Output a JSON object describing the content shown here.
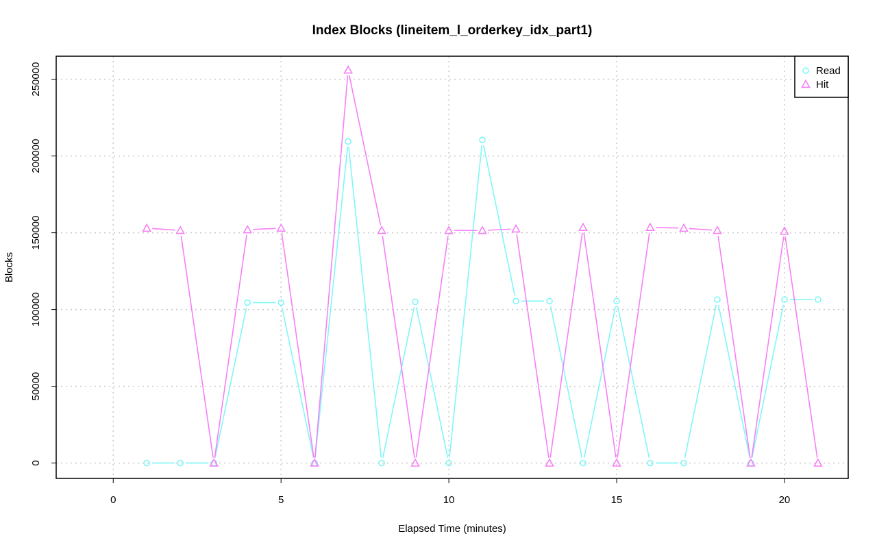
{
  "chart_data": {
    "type": "line",
    "title": "Index Blocks (lineitem_l_orderkey_idx_part1)",
    "xlabel": "Elapsed Time (minutes)",
    "ylabel": "Blocks",
    "xlim": [
      -1.7,
      21.9
    ],
    "ylim": [
      -10000,
      265000
    ],
    "x_ticks": [
      0,
      5,
      10,
      15,
      20
    ],
    "y_ticks": [
      0,
      50000,
      100000,
      150000,
      200000,
      250000
    ],
    "grid": true,
    "legend_position": "top-right",
    "x": [
      1,
      2,
      3,
      4,
      5,
      6,
      7,
      8,
      9,
      10,
      11,
      12,
      13,
      14,
      15,
      16,
      17,
      18,
      19,
      20,
      21
    ],
    "series": [
      {
        "name": "Read",
        "color": "#7ff7f7",
        "marker": "circle",
        "values": [
          0,
          0,
          0,
          104500,
          104500,
          0,
          209500,
          0,
          105000,
          0,
          210500,
          105500,
          105500,
          0,
          105500,
          0,
          0,
          106500,
          0,
          106500,
          106500
        ]
      },
      {
        "name": "Hit",
        "color": "#f77ff7",
        "marker": "triangle",
        "values": [
          153000,
          151500,
          0,
          152000,
          153000,
          0,
          256000,
          151500,
          0,
          151500,
          151500,
          152500,
          0,
          153500,
          0,
          153500,
          153000,
          151500,
          0,
          151000,
          0
        ]
      }
    ]
  }
}
